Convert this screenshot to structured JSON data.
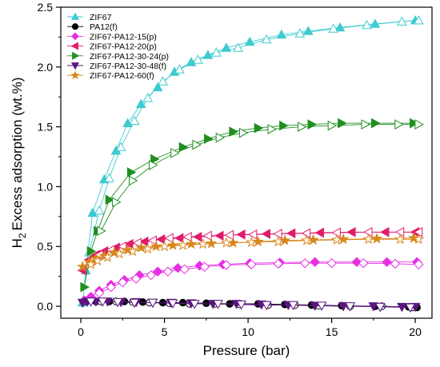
{
  "chart_data": {
    "type": "scatter",
    "xlabel": "Pressure (bar)",
    "ylabel_main": "Excess adsorption (wt.%)",
    "ylabel_prefix": "H",
    "ylabel_sub": "2",
    "xlim": [
      -1.2,
      21
    ],
    "ylim": [
      -0.1,
      2.5
    ],
    "xticks": [
      0,
      5,
      10,
      15,
      20
    ],
    "xtick_labels": [
      "0",
      "5",
      "10",
      "15",
      "20"
    ],
    "yticks": [
      0.0,
      0.5,
      1.0,
      1.5,
      2.0,
      2.5
    ],
    "ytick_labels": [
      "0.0",
      "0.5",
      "1.0",
      "1.5",
      "2.0",
      "2.5"
    ],
    "legend_position": "top-left",
    "grid": false,
    "series": [
      {
        "name": "ZIF67",
        "color": "#3dcad1",
        "marker": "triangle-up",
        "adsorption": [
          [
            0.1,
            0.03
          ],
          [
            0.3,
            0.3
          ],
          [
            0.7,
            0.78
          ],
          [
            1.4,
            1.06
          ],
          [
            2.1,
            1.3
          ],
          [
            2.8,
            1.53
          ],
          [
            3.6,
            1.69
          ],
          [
            4.6,
            1.83
          ],
          [
            5.6,
            1.96
          ],
          [
            6.6,
            2.04
          ],
          [
            7.6,
            2.1
          ],
          [
            8.7,
            2.16
          ],
          [
            10.1,
            2.21
          ],
          [
            12,
            2.27
          ],
          [
            13.6,
            2.3
          ],
          [
            15.5,
            2.33
          ],
          [
            17.6,
            2.36
          ],
          [
            20,
            2.39
          ]
        ],
        "desorption": [
          [
            20.2,
            2.39
          ],
          [
            19.2,
            2.38
          ],
          [
            17.1,
            2.35
          ],
          [
            15.1,
            2.32
          ],
          [
            13.1,
            2.28
          ],
          [
            11.1,
            2.23
          ],
          [
            9.4,
            2.16
          ],
          [
            8.1,
            2.12
          ],
          [
            7,
            2.06
          ],
          [
            5.9,
            1.98
          ],
          [
            4.9,
            1.88
          ],
          [
            4,
            1.74
          ],
          [
            3.2,
            1.55
          ],
          [
            2.4,
            1.33
          ],
          [
            1.7,
            1.07
          ],
          [
            1.1,
            0.8
          ],
          [
            0.5,
            0.45
          ]
        ]
      },
      {
        "name": "PA12(f)",
        "color": "#000000",
        "marker": "circle",
        "adsorption": [
          [
            0.2,
            0.04
          ],
          [
            0.9,
            0.04
          ],
          [
            1.7,
            0.04
          ],
          [
            2.6,
            0.04
          ],
          [
            3.7,
            0.035
          ],
          [
            4.9,
            0.03
          ],
          [
            6.1,
            0.03
          ],
          [
            7.5,
            0.025
          ],
          [
            8.9,
            0.02
          ],
          [
            10.6,
            0.02
          ],
          [
            12.2,
            0.015
          ],
          [
            13.8,
            0.01
          ],
          [
            15.6,
            0.005
          ],
          [
            17.6,
            0.0
          ],
          [
            19.6,
            -0.005
          ],
          [
            20.1,
            -0.01
          ]
        ],
        "desorption": [
          [
            19.8,
            -0.01
          ],
          [
            18,
            0.0
          ],
          [
            16.1,
            0.0
          ],
          [
            14.2,
            0.005
          ],
          [
            12.8,
            0.01
          ],
          [
            11.2,
            0.01
          ],
          [
            9.5,
            0.015
          ],
          [
            8,
            0.02
          ],
          [
            6.5,
            0.02
          ],
          [
            5.3,
            0.025
          ],
          [
            4.1,
            0.03
          ],
          [
            3.1,
            0.035
          ],
          [
            2.1,
            0.04
          ],
          [
            1.2,
            0.04
          ]
        ]
      },
      {
        "name": "ZIF67-PA12-15(p)",
        "color": "#e62fe3",
        "marker": "diamond",
        "adsorption": [
          [
            0.2,
            0.05
          ],
          [
            0.6,
            0.08
          ],
          [
            1.1,
            0.13
          ],
          [
            1.8,
            0.18
          ],
          [
            2.6,
            0.22
          ],
          [
            3.5,
            0.26
          ],
          [
            4.6,
            0.29
          ],
          [
            5.8,
            0.32
          ],
          [
            7.1,
            0.34
          ],
          [
            8.5,
            0.35
          ],
          [
            10.1,
            0.36
          ],
          [
            11.9,
            0.365
          ],
          [
            14,
            0.37
          ],
          [
            16.5,
            0.37
          ],
          [
            18.3,
            0.37
          ],
          [
            20.1,
            0.37
          ]
        ],
        "desorption": [
          [
            20.2,
            0.35
          ],
          [
            18.8,
            0.355
          ],
          [
            16.9,
            0.36
          ],
          [
            15,
            0.36
          ],
          [
            13.4,
            0.36
          ],
          [
            11.8,
            0.355
          ],
          [
            10.2,
            0.35
          ],
          [
            8.7,
            0.345
          ],
          [
            7.4,
            0.33
          ],
          [
            6.2,
            0.31
          ],
          [
            5.2,
            0.29
          ],
          [
            4.2,
            0.26
          ],
          [
            3.3,
            0.23
          ],
          [
            2.5,
            0.2
          ],
          [
            1.8,
            0.16
          ],
          [
            1.1,
            0.11
          ]
        ]
      },
      {
        "name": "ZIF67-PA12-20(p)",
        "color": "#e11c6b",
        "marker": "triangle-left",
        "adsorption": [
          [
            0.1,
            0.3
          ],
          [
            0.5,
            0.39
          ],
          [
            0.9,
            0.43
          ],
          [
            1.4,
            0.46
          ],
          [
            2.1,
            0.49
          ],
          [
            2.9,
            0.52
          ],
          [
            3.8,
            0.54
          ],
          [
            4.8,
            0.56
          ],
          [
            5.9,
            0.57
          ],
          [
            7,
            0.58
          ],
          [
            8.3,
            0.59
          ],
          [
            9.6,
            0.6
          ],
          [
            11.1,
            0.605
          ],
          [
            12.6,
            0.61
          ],
          [
            14.3,
            0.615
          ],
          [
            16.2,
            0.62
          ],
          [
            18.2,
            0.62
          ],
          [
            20,
            0.62
          ]
        ],
        "desorption": [
          [
            20.2,
            0.62
          ],
          [
            19.1,
            0.62
          ],
          [
            17.2,
            0.62
          ],
          [
            15.3,
            0.615
          ],
          [
            13.5,
            0.61
          ],
          [
            11.8,
            0.605
          ],
          [
            10.3,
            0.6
          ],
          [
            8.9,
            0.595
          ],
          [
            7.6,
            0.59
          ],
          [
            6.4,
            0.58
          ],
          [
            5.3,
            0.57
          ],
          [
            4.3,
            0.55
          ],
          [
            3.4,
            0.53
          ],
          [
            2.5,
            0.5
          ],
          [
            1.8,
            0.47
          ],
          [
            1.1,
            0.43
          ],
          [
            0.6,
            0.38
          ]
        ]
      },
      {
        "name": "ZIF67-PA12-30-24(p)",
        "color": "#1f8f1f",
        "marker": "triangle-right",
        "adsorption": [
          [
            0.2,
            0.16
          ],
          [
            0.6,
            0.46
          ],
          [
            1,
            0.63
          ],
          [
            1.7,
            0.89
          ],
          [
            3,
            1.12
          ],
          [
            4.4,
            1.23
          ],
          [
            6.1,
            1.33
          ],
          [
            7.6,
            1.4
          ],
          [
            9.1,
            1.46
          ],
          [
            10.6,
            1.49
          ],
          [
            12.1,
            1.51
          ],
          [
            13.8,
            1.52
          ],
          [
            15.6,
            1.53
          ],
          [
            17.6,
            1.53
          ],
          [
            19.9,
            1.53
          ]
        ],
        "desorption": [
          [
            20.2,
            1.52
          ],
          [
            19,
            1.52
          ],
          [
            17,
            1.52
          ],
          [
            15,
            1.51
          ],
          [
            13.2,
            1.5
          ],
          [
            11.4,
            1.48
          ],
          [
            9.7,
            1.45
          ],
          [
            8.3,
            1.41
          ],
          [
            6.9,
            1.35
          ],
          [
            5.6,
            1.28
          ],
          [
            4.3,
            1.18
          ],
          [
            3.1,
            1.05
          ],
          [
            2.1,
            0.87
          ],
          [
            1.2,
            0.63
          ]
        ]
      },
      {
        "name": "ZIF67-PA12-30-48(f)",
        "color": "#5b1680",
        "marker": "triangle-down",
        "adsorption": [
          [
            0.1,
            0.03
          ],
          [
            0.4,
            0.04
          ],
          [
            0.9,
            0.04
          ],
          [
            1.6,
            0.04
          ],
          [
            2.4,
            0.035
          ],
          [
            3.3,
            0.035
          ],
          [
            4.3,
            0.03
          ],
          [
            5.4,
            0.03
          ],
          [
            6.6,
            0.025
          ],
          [
            7.9,
            0.02
          ],
          [
            9.3,
            0.02
          ],
          [
            10.8,
            0.015
          ],
          [
            12.4,
            0.01
          ],
          [
            14,
            0.005
          ],
          [
            15.7,
            0.0
          ],
          [
            17.5,
            0.0
          ],
          [
            19.2,
            -0.005
          ],
          [
            20,
            -0.005
          ]
        ],
        "desorption": [
          [
            19.7,
            -0.01
          ],
          [
            17.9,
            -0.005
          ],
          [
            16.1,
            0.0
          ],
          [
            14.4,
            0.005
          ],
          [
            12.7,
            0.01
          ],
          [
            11.1,
            0.01
          ],
          [
            9.6,
            0.015
          ],
          [
            8.2,
            0.02
          ],
          [
            6.8,
            0.02
          ],
          [
            5.5,
            0.025
          ],
          [
            4.3,
            0.03
          ],
          [
            3.2,
            0.03
          ],
          [
            2.2,
            0.035
          ],
          [
            1.3,
            0.04
          ],
          [
            0.6,
            0.04
          ]
        ]
      },
      {
        "name": "ZIF67-PA12-60(f)",
        "color": "#d8871c",
        "marker": "star",
        "adsorption": [
          [
            0.1,
            0.33
          ],
          [
            0.5,
            0.37
          ],
          [
            0.9,
            0.4
          ],
          [
            1.4,
            0.42
          ],
          [
            2,
            0.45
          ],
          [
            2.8,
            0.47
          ],
          [
            3.6,
            0.49
          ],
          [
            4.5,
            0.5
          ],
          [
            5.5,
            0.51
          ],
          [
            6.6,
            0.52
          ],
          [
            7.8,
            0.525
          ],
          [
            9.1,
            0.53
          ],
          [
            10.6,
            0.54
          ],
          [
            12.2,
            0.55
          ],
          [
            13.9,
            0.555
          ],
          [
            15.7,
            0.56
          ],
          [
            17.7,
            0.565
          ],
          [
            19.9,
            0.57
          ]
        ],
        "desorption": [
          [
            20.2,
            0.56
          ],
          [
            19.1,
            0.56
          ],
          [
            17.2,
            0.56
          ],
          [
            15.3,
            0.555
          ],
          [
            13.5,
            0.55
          ],
          [
            11.8,
            0.54
          ],
          [
            10.2,
            0.535
          ],
          [
            8.7,
            0.53
          ],
          [
            7.3,
            0.52
          ],
          [
            6.1,
            0.51
          ],
          [
            5,
            0.5
          ],
          [
            4,
            0.48
          ],
          [
            3.1,
            0.46
          ],
          [
            2.3,
            0.44
          ],
          [
            1.6,
            0.41
          ],
          [
            1,
            0.38
          ],
          [
            0.6,
            0.35
          ]
        ]
      }
    ]
  }
}
